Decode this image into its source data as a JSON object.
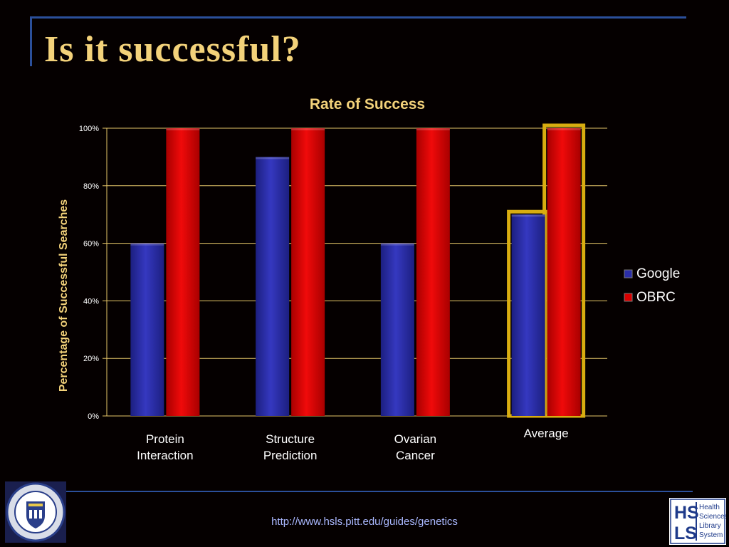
{
  "slide": {
    "title": "Is it successful?",
    "footer_url": "http://www.hsls.pitt.edu/guides/genetics"
  },
  "logos": {
    "left": {
      "name": "University of Pittsburgh seal",
      "text": "UNIVERSITY OF PITTSBURGH"
    },
    "right": {
      "name": "HSLS logo",
      "letters_top": "HS",
      "letters_bottom": "LS",
      "text_lines": [
        "Health",
        "Sciences",
        "Library",
        "System"
      ]
    }
  },
  "colors": {
    "background": "#050000",
    "title": "#f3d27a",
    "google": "#2b2ea8",
    "obrc": "#d90000",
    "highlight": "#d8ad10",
    "frame": "#2b4f9a"
  },
  "chart_data": {
    "type": "bar",
    "title": "Rate of Success",
    "ylabel": "Percentage of Successful Searches",
    "xlabel": "",
    "categories": [
      "Protein\nInteraction",
      "Structure\nPrediction",
      "Ovarian\nCancer",
      "Average"
    ],
    "series": [
      {
        "name": "Google",
        "values": [
          60,
          90,
          60,
          70
        ],
        "color": "#2b2ea8"
      },
      {
        "name": "OBRC",
        "values": [
          100,
          100,
          100,
          100
        ],
        "color": "#d90000"
      }
    ],
    "ylim": [
      0,
      100
    ],
    "yticks": [
      "0%",
      "20%",
      "40%",
      "60%",
      "80%",
      "100%"
    ],
    "highlighted_category": "Average",
    "grid": true,
    "legend": "right"
  }
}
